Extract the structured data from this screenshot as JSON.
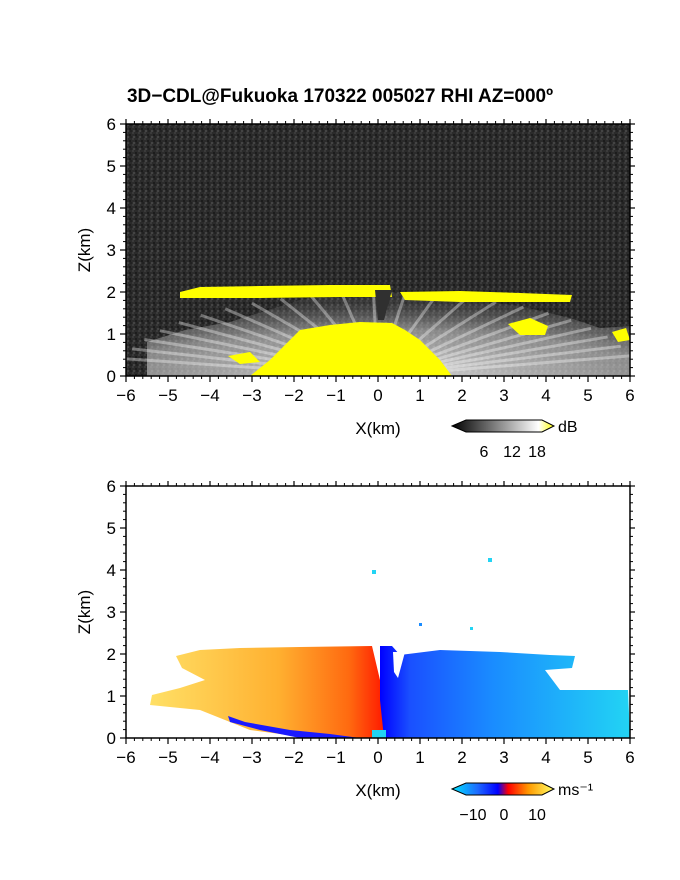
{
  "title": "3D−CDL@Fukuoka 170322 005027 RHI AZ=000º",
  "chart_data": [
    {
      "type": "heatmap",
      "name": "intensity",
      "xlabel": "X(km)",
      "ylabel": "Z(km)",
      "xlim": [
        -6,
        6
      ],
      "ylim": [
        0,
        6
      ],
      "x_ticks": [
        "−6",
        "−5",
        "−4",
        "−3",
        "−2",
        "−1",
        "0",
        "1",
        "2",
        "3",
        "4",
        "5",
        "6"
      ],
      "y_ticks": [
        "0",
        "1",
        "2",
        "3",
        "4",
        "5",
        "6"
      ],
      "background": "#2a2a2a",
      "colorbar": {
        "unit": "dB",
        "ticks": [
          "6",
          "12",
          "18"
        ],
        "colors": [
          "#000000",
          "#ffffff",
          "#ffff00"
        ]
      }
    },
    {
      "type": "heatmap",
      "name": "doppler-velocity",
      "xlabel": "X(km)",
      "ylabel": "Z(km)",
      "xlim": [
        -6,
        6
      ],
      "ylim": [
        0,
        6
      ],
      "x_ticks": [
        "−6",
        "−5",
        "−4",
        "−3",
        "−2",
        "−1",
        "0",
        "1",
        "2",
        "3",
        "4",
        "5",
        "6"
      ],
      "y_ticks": [
        "0",
        "1",
        "2",
        "3",
        "4",
        "5",
        "6"
      ],
      "background": "#ffffff",
      "colorbar": {
        "unit": "ms⁻¹",
        "ticks": [
          "−10",
          "0",
          "10"
        ],
        "colors": [
          "#00e5ff",
          "#0000ff",
          "#ff0000",
          "#ffff66"
        ]
      }
    }
  ]
}
